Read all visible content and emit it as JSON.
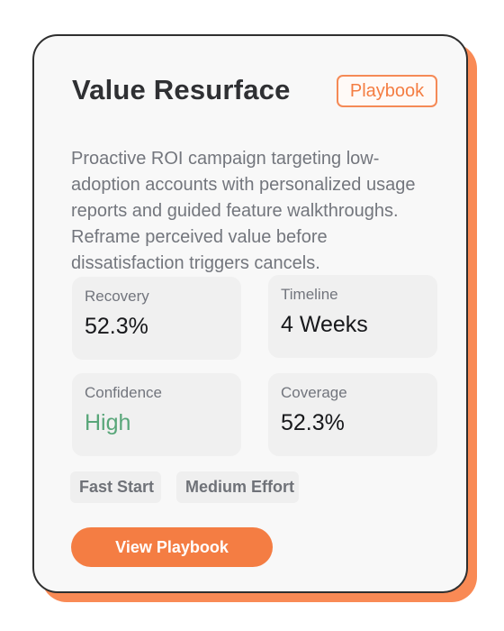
{
  "card": {
    "title": "Value Resurface",
    "badge": "Playbook",
    "description": "Proactive ROI campaign targeting low-adoption accounts with personalized usage reports and guided feature walkthroughs. Reframe perceived value before dissatisfaction triggers cancels.",
    "metrics": [
      {
        "label": "Recovery",
        "value": "52.3%"
      },
      {
        "label": "Timeline",
        "value": "4 Weeks"
      },
      {
        "label": "Confidence",
        "value": "High"
      },
      {
        "label": "Coverage",
        "value": "52.3%"
      }
    ],
    "tags": [
      "Fast Start",
      "Medium Effort"
    ],
    "button_label": "View Playbook"
  },
  "colors": {
    "accent": "#F47D43",
    "positive": "#58A679",
    "text_primary": "#17181B",
    "text_secondary": "#72757D"
  }
}
